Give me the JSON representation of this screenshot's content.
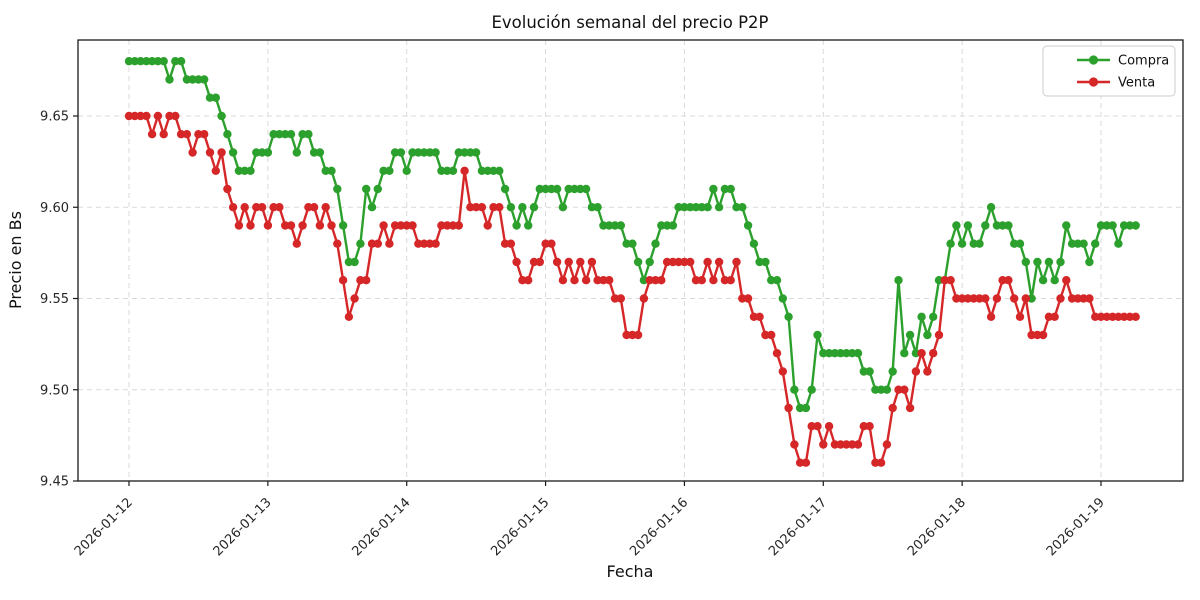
{
  "chart": {
    "title": "Evolución semanal del precio P2P",
    "xlabel": "Fecha",
    "ylabel": "Precio en Bs",
    "legend": {
      "compra": "Compra",
      "venta": "Venta"
    }
  },
  "chart_data": {
    "type": "line",
    "title": "Evolución semanal del precio P2P",
    "xlabel": "Fecha",
    "ylabel": "Precio en Bs",
    "grid": true,
    "legend_position": "upper right",
    "x_start": "2026-01-12 00:00",
    "x_interval_hours": 1,
    "x_tick_labels": [
      "2026-01-12",
      "2026-01-13",
      "2026-01-14",
      "2026-01-15",
      "2026-01-16",
      "2026-01-17",
      "2026-01-18",
      "2026-01-19"
    ],
    "y_ticks": [
      9.45,
      9.5,
      9.55,
      9.6,
      9.65
    ],
    "ylim": [
      9.45,
      9.6916
    ],
    "colors": {
      "compra": "#2ca02c",
      "venta": "#d62728"
    },
    "series": [
      {
        "name": "Compra",
        "color": "#2ca02c",
        "values": [
          9.68,
          9.68,
          9.68,
          9.68,
          9.68,
          9.68,
          9.68,
          9.67,
          9.68,
          9.68,
          9.67,
          9.67,
          9.67,
          9.67,
          9.66,
          9.66,
          9.65,
          9.64,
          9.63,
          9.62,
          9.62,
          9.62,
          9.63,
          9.63,
          9.63,
          9.64,
          9.64,
          9.64,
          9.64,
          9.63,
          9.64,
          9.64,
          9.63,
          9.63,
          9.62,
          9.62,
          9.61,
          9.59,
          9.57,
          9.57,
          9.58,
          9.61,
          9.6,
          9.61,
          9.62,
          9.62,
          9.63,
          9.63,
          9.62,
          9.63,
          9.63,
          9.63,
          9.63,
          9.63,
          9.62,
          9.62,
          9.62,
          9.63,
          9.63,
          9.63,
          9.63,
          9.62,
          9.62,
          9.62,
          9.62,
          9.61,
          9.6,
          9.59,
          9.6,
          9.59,
          9.6,
          9.61,
          9.61,
          9.61,
          9.61,
          9.6,
          9.61,
          9.61,
          9.61,
          9.61,
          9.6,
          9.6,
          9.59,
          9.59,
          9.59,
          9.59,
          9.58,
          9.58,
          9.57,
          9.56,
          9.57,
          9.58,
          9.59,
          9.59,
          9.59,
          9.6,
          9.6,
          9.6,
          9.6,
          9.6,
          9.6,
          9.61,
          9.6,
          9.61,
          9.61,
          9.6,
          9.6,
          9.59,
          9.58,
          9.57,
          9.57,
          9.56,
          9.56,
          9.55,
          9.54,
          9.5,
          9.49,
          9.49,
          9.5,
          9.53,
          9.52,
          9.52,
          9.52,
          9.52,
          9.52,
          9.52,
          9.52,
          9.51,
          9.51,
          9.5,
          9.5,
          9.5,
          9.51,
          9.56,
          9.52,
          9.53,
          9.52,
          9.54,
          9.53,
          9.54,
          9.56,
          9.56,
          9.58,
          9.59,
          9.58,
          9.59,
          9.58,
          9.58,
          9.59,
          9.6,
          9.59,
          9.59,
          9.59,
          9.58,
          9.58,
          9.57,
          9.55,
          9.57,
          9.56,
          9.57,
          9.56,
          9.57,
          9.59,
          9.58,
          9.58,
          9.58,
          9.57,
          9.58,
          9.59,
          9.59,
          9.59,
          9.58,
          9.59,
          9.59,
          9.59
        ]
      },
      {
        "name": "Venta",
        "color": "#d62728",
        "values": [
          9.65,
          9.65,
          9.65,
          9.65,
          9.64,
          9.65,
          9.64,
          9.65,
          9.65,
          9.64,
          9.64,
          9.63,
          9.64,
          9.64,
          9.63,
          9.62,
          9.63,
          9.61,
          9.6,
          9.59,
          9.6,
          9.59,
          9.6,
          9.6,
          9.59,
          9.6,
          9.6,
          9.59,
          9.59,
          9.58,
          9.59,
          9.6,
          9.6,
          9.59,
          9.6,
          9.59,
          9.58,
          9.56,
          9.54,
          9.55,
          9.56,
          9.56,
          9.58,
          9.58,
          9.59,
          9.58,
          9.59,
          9.59,
          9.59,
          9.59,
          9.58,
          9.58,
          9.58,
          9.58,
          9.59,
          9.59,
          9.59,
          9.59,
          9.62,
          9.6,
          9.6,
          9.6,
          9.59,
          9.6,
          9.6,
          9.58,
          9.58,
          9.57,
          9.56,
          9.56,
          9.57,
          9.57,
          9.58,
          9.58,
          9.57,
          9.56,
          9.57,
          9.56,
          9.57,
          9.56,
          9.57,
          9.56,
          9.56,
          9.56,
          9.55,
          9.55,
          9.53,
          9.53,
          9.53,
          9.55,
          9.56,
          9.56,
          9.56,
          9.57,
          9.57,
          9.57,
          9.57,
          9.57,
          9.56,
          9.56,
          9.57,
          9.56,
          9.57,
          9.56,
          9.56,
          9.57,
          9.55,
          9.55,
          9.54,
          9.54,
          9.53,
          9.53,
          9.52,
          9.51,
          9.49,
          9.47,
          9.46,
          9.46,
          9.48,
          9.48,
          9.47,
          9.48,
          9.47,
          9.47,
          9.47,
          9.47,
          9.47,
          9.48,
          9.48,
          9.46,
          9.46,
          9.47,
          9.49,
          9.5,
          9.5,
          9.49,
          9.51,
          9.52,
          9.51,
          9.52,
          9.53,
          9.56,
          9.56,
          9.55,
          9.55,
          9.55,
          9.55,
          9.55,
          9.55,
          9.54,
          9.55,
          9.56,
          9.56,
          9.55,
          9.54,
          9.55,
          9.53,
          9.53,
          9.53,
          9.54,
          9.54,
          9.55,
          9.56,
          9.55,
          9.55,
          9.55,
          9.55,
          9.54,
          9.54,
          9.54,
          9.54,
          9.54,
          9.54,
          9.54,
          9.54
        ]
      }
    ]
  }
}
